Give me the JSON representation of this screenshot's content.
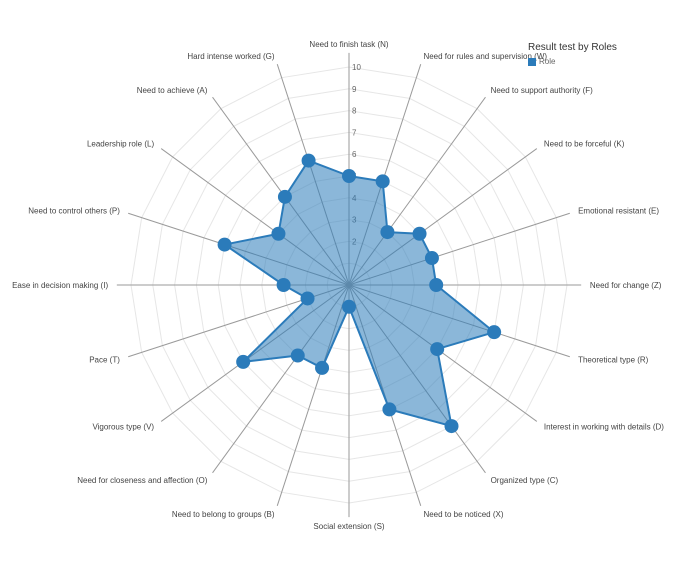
{
  "chart_data": {
    "type": "radar",
    "legend_title": "Result test by Roles",
    "legend_position": "top-right",
    "radial_range": [
      0,
      10
    ],
    "radial_ticks": [
      "2",
      "3",
      "4",
      "5",
      "6",
      "7",
      "8",
      "9",
      "10"
    ],
    "categories": [
      "Need to finish task (N)",
      "Need for rules and supervision (W)",
      "Need to support authority (F)",
      "Need to be forceful (K)",
      "Emotional resistant (E)",
      "Need for change (Z)",
      "Theoretical type (R)",
      "Interest in working with details (D)",
      "Organized type (C)",
      "Need to be noticed (X)",
      "Social extension (S)",
      "Need to belong to groups (B)",
      "Need for closeness and affection (O)",
      "Vigorous type (V)",
      "Pace (T)",
      "Ease in decision making (I)",
      "Need to control others (P)",
      "Leadership role (L)",
      "Need to achieve (A)",
      "Hard intense worked (G)"
    ],
    "series": [
      {
        "name": "Role",
        "color": "#2b7bba",
        "values": [
          5,
          5,
          3,
          4,
          4,
          4,
          7,
          5,
          8,
          6,
          1,
          4,
          4,
          6,
          2,
          3,
          6,
          4,
          5,
          6
        ]
      }
    ],
    "grid": true
  }
}
